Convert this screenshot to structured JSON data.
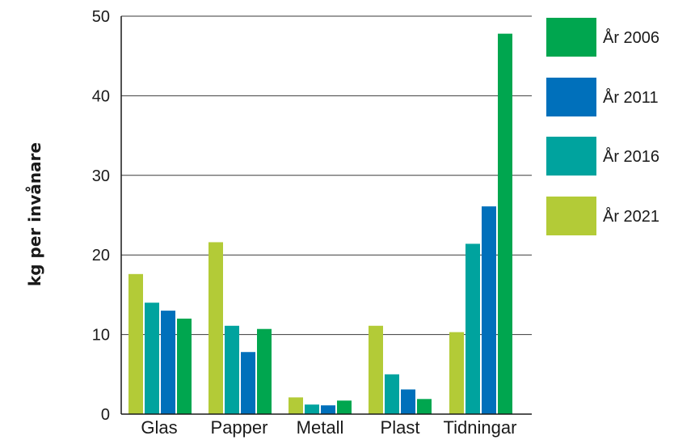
{
  "chart_data": {
    "type": "bar",
    "title": "",
    "xlabel": "",
    "ylabel": "kg per invånare",
    "ylim": [
      0,
      50
    ],
    "yticks": [
      "0",
      "10",
      "20",
      "30",
      "40",
      "50"
    ],
    "categories": [
      "Glas",
      "Papper",
      "Metall",
      "Plast",
      "Tidningar"
    ],
    "series": [
      {
        "name": "År 2021",
        "color": "#b3cb37",
        "values": [
          17.6,
          21.6,
          2.1,
          11.1,
          10.3
        ]
      },
      {
        "name": "År 2016",
        "color": "#00a39e",
        "values": [
          14.0,
          11.1,
          1.2,
          5.0,
          21.4
        ]
      },
      {
        "name": "År 2011",
        "color": "#0070bb",
        "values": [
          13.0,
          7.8,
          1.1,
          3.1,
          26.1
        ]
      },
      {
        "name": "År 2006",
        "color": "#00a64f",
        "values": [
          12.0,
          10.7,
          1.7,
          1.9,
          47.8
        ]
      }
    ],
    "legend": {
      "position": "right",
      "order": [
        "År 2006",
        "År 2011",
        "År 2016",
        "År 2021"
      ]
    },
    "grid": true
  }
}
